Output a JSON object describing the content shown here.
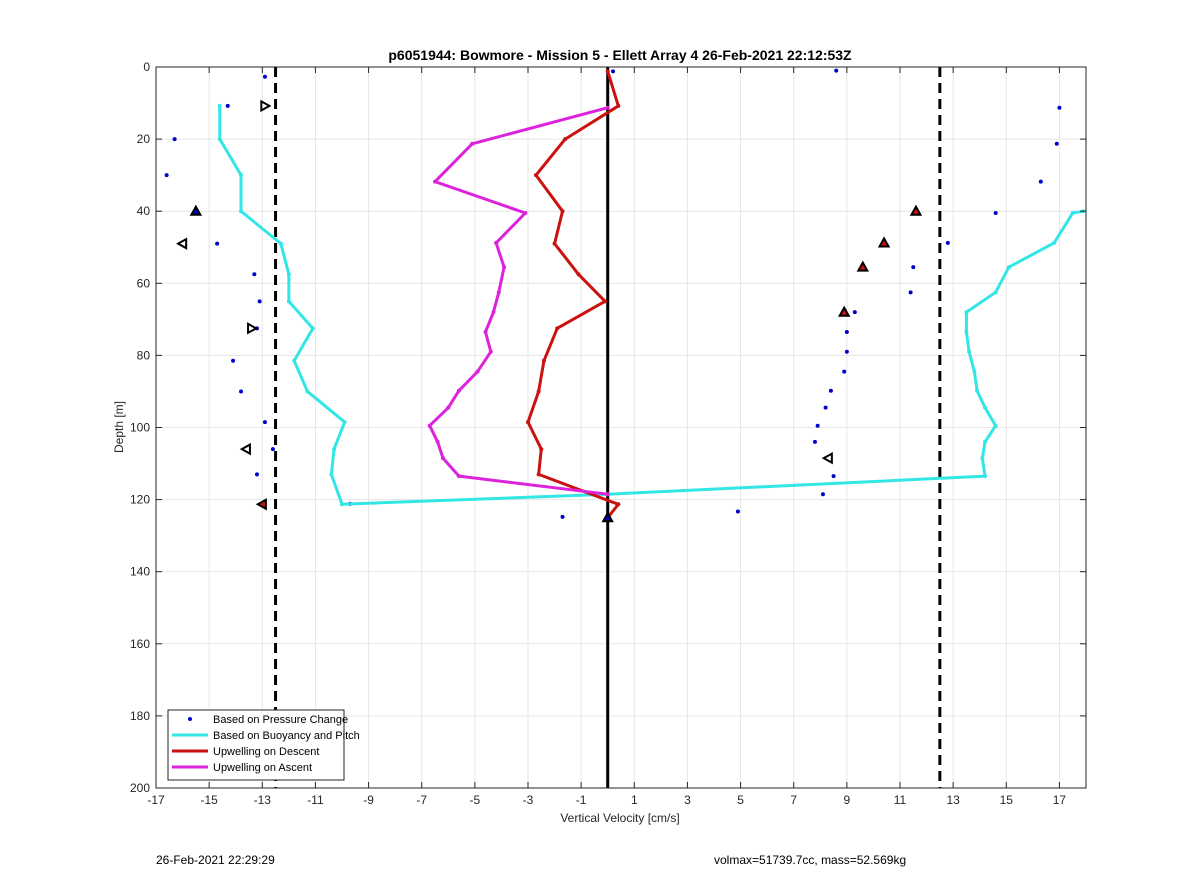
{
  "chart_data": {
    "type": "line",
    "title": "p6051944: Bowmore - Mission 5 - Ellett Array 4 26-Feb-2021 22:12:53Z",
    "xlabel": "Vertical Velocity [cm/s]",
    "ylabel": "Depth [m]",
    "xlim": [
      -17,
      18
    ],
    "ylim": [
      0,
      200
    ],
    "y_reversed": true,
    "grid": true,
    "x_ticks": [
      -17,
      -15,
      -13,
      -11,
      -9,
      -7,
      -5,
      -3,
      -1,
      1,
      3,
      5,
      7,
      9,
      11,
      13,
      15,
      17
    ],
    "y_ticks": [
      0,
      20,
      40,
      60,
      80,
      100,
      120,
      140,
      160,
      180,
      200
    ],
    "legend_position": "bottom-left",
    "reference_lines": [
      {
        "type": "vertical",
        "x": -12.5,
        "style": "dashed",
        "color": "#000000"
      },
      {
        "type": "vertical",
        "x": 12.5,
        "style": "dashed",
        "color": "#000000"
      },
      {
        "type": "vertical",
        "x": 0,
        "style": "solid",
        "color": "#000000"
      }
    ],
    "series": [
      {
        "name": "Based on Pressure Change",
        "kind": "points",
        "color": "#0000cc",
        "points": [
          [
            -12.9,
            2.7
          ],
          [
            -14.3,
            10.8
          ],
          [
            -16.3,
            20
          ],
          [
            -16.6,
            30
          ],
          [
            -15.5,
            40
          ],
          [
            -14.7,
            49
          ],
          [
            -13.3,
            57.5
          ],
          [
            -13.1,
            65
          ],
          [
            -13.2,
            72.5
          ],
          [
            -14.1,
            81.5
          ],
          [
            -13.8,
            90
          ],
          [
            -12.9,
            98.5
          ],
          [
            -12.6,
            106
          ],
          [
            -13.2,
            113
          ],
          [
            -13.0,
            121.3
          ],
          [
            0.2,
            1.2
          ],
          [
            8.6,
            1
          ],
          [
            17.0,
            11.3
          ],
          [
            16.9,
            21.3
          ],
          [
            16.3,
            31.8
          ],
          [
            14.6,
            40.5
          ],
          [
            11.6,
            40
          ],
          [
            12.8,
            48.8
          ],
          [
            11.5,
            55.5
          ],
          [
            11.4,
            62.5
          ],
          [
            9.3,
            68
          ],
          [
            9.0,
            73.5
          ],
          [
            9.0,
            79
          ],
          [
            8.9,
            84.5
          ],
          [
            8.4,
            89.8
          ],
          [
            8.2,
            94.5
          ],
          [
            7.9,
            99.5
          ],
          [
            7.8,
            104
          ],
          [
            8.3,
            108.5
          ],
          [
            8.5,
            113.5
          ],
          [
            8.1,
            118.5
          ],
          [
            4.9,
            123.3
          ],
          [
            -1.7,
            124.8
          ],
          [
            -9.7,
            121.2
          ],
          [
            0.0,
            125
          ]
        ]
      },
      {
        "name": "Based on Buoyancy and Pitch",
        "kind": "line",
        "color": "#33e6e6",
        "points": [
          [
            -14.6,
            10.8
          ],
          [
            -14.6,
            20
          ],
          [
            -13.8,
            30
          ],
          [
            -13.8,
            40
          ],
          [
            -12.3,
            49
          ],
          [
            -12.0,
            57.5
          ],
          [
            -12.0,
            65
          ],
          [
            -11.1,
            72.5
          ],
          [
            -11.8,
            81.5
          ],
          [
            -11.3,
            90
          ],
          [
            -9.9,
            98.5
          ],
          [
            -10.3,
            106
          ],
          [
            -10.4,
            113
          ],
          [
            -10.0,
            121.3
          ],
          [
            0.0,
            118.5
          ],
          [
            14.2,
            113.5
          ],
          [
            14.1,
            108.5
          ],
          [
            14.2,
            104
          ],
          [
            14.6,
            99.5
          ],
          [
            14.2,
            94.5
          ],
          [
            13.9,
            89.8
          ],
          [
            13.8,
            84.5
          ],
          [
            13.6,
            79
          ],
          [
            13.5,
            73.5
          ],
          [
            13.5,
            68
          ],
          [
            14.6,
            62.5
          ],
          [
            15.1,
            55.5
          ],
          [
            16.8,
            48.8
          ],
          [
            17.5,
            40.5
          ],
          [
            17.9,
            40
          ]
        ]
      },
      {
        "name": "Upwelling on Descent",
        "kind": "line",
        "color": "#cc1111",
        "points": [
          [
            0.0,
            1.2
          ],
          [
            0.4,
            10.8
          ],
          [
            -1.6,
            20
          ],
          [
            -2.7,
            30
          ],
          [
            -1.7,
            40
          ],
          [
            -2.0,
            49
          ],
          [
            -1.1,
            57.5
          ],
          [
            -0.1,
            65
          ],
          [
            -1.9,
            72.5
          ],
          [
            -2.4,
            81.5
          ],
          [
            -2.6,
            90
          ],
          [
            -3.0,
            98.5
          ],
          [
            -2.5,
            106
          ],
          [
            -2.6,
            113
          ],
          [
            0.4,
            121.3
          ],
          [
            0.0,
            125
          ]
        ]
      },
      {
        "name": "Upwelling on Ascent",
        "kind": "line",
        "color": "#dd22dd",
        "points": [
          [
            0.0,
            11.3
          ],
          [
            -5.1,
            21.3
          ],
          [
            -6.5,
            31.8
          ],
          [
            -3.1,
            40.5
          ],
          [
            -4.2,
            48.8
          ],
          [
            -3.9,
            55.5
          ],
          [
            -4.1,
            62.5
          ],
          [
            -4.3,
            68
          ],
          [
            -4.6,
            73.5
          ],
          [
            -4.4,
            79
          ],
          [
            -4.9,
            84.5
          ],
          [
            -5.6,
            89.8
          ],
          [
            -6.0,
            94.5
          ],
          [
            -6.7,
            99.5
          ],
          [
            -6.4,
            104
          ],
          [
            -6.2,
            108.5
          ],
          [
            -5.6,
            113.5
          ],
          [
            0.0,
            118.5
          ]
        ]
      }
    ],
    "markers": [
      {
        "shape": "right-triangle",
        "x": -12.9,
        "y": 10.8,
        "edge": "#000000",
        "fill": "#ffffff"
      },
      {
        "shape": "up-triangle",
        "x": -15.5,
        "y": 40,
        "edge": "#000000",
        "fill": "#0000cc"
      },
      {
        "shape": "left-triangle",
        "x": -16.0,
        "y": 49,
        "edge": "#000000",
        "fill": "#ffffff"
      },
      {
        "shape": "right-triangle",
        "x": -13.4,
        "y": 72.5,
        "edge": "#000000",
        "fill": "#ffffff"
      },
      {
        "shape": "left-triangle",
        "x": -13.6,
        "y": 106,
        "edge": "#000000",
        "fill": "#ffffff"
      },
      {
        "shape": "left-triangle",
        "x": -13.0,
        "y": 121.3,
        "edge": "#000000",
        "fill": "#cc1111"
      },
      {
        "shape": "up-triangle",
        "x": 11.6,
        "y": 40,
        "edge": "#000000",
        "fill": "#cc1111"
      },
      {
        "shape": "up-triangle",
        "x": 10.4,
        "y": 48.8,
        "edge": "#000000",
        "fill": "#cc1111"
      },
      {
        "shape": "up-triangle",
        "x": 9.6,
        "y": 55.5,
        "edge": "#000000",
        "fill": "#cc1111"
      },
      {
        "shape": "up-triangle",
        "x": 8.9,
        "y": 68,
        "edge": "#000000",
        "fill": "#cc1111"
      },
      {
        "shape": "left-triangle",
        "x": 8.3,
        "y": 108.5,
        "edge": "#000000",
        "fill": "#ffffff"
      },
      {
        "shape": "up-triangle",
        "x": 0.0,
        "y": 125,
        "edge": "#000000",
        "fill": "#0000cc"
      }
    ]
  },
  "footer": {
    "timestamp": "26-Feb-2021 22:29:29",
    "volmax_mass": "volmax=51739.7cc, mass=52.569kg"
  }
}
